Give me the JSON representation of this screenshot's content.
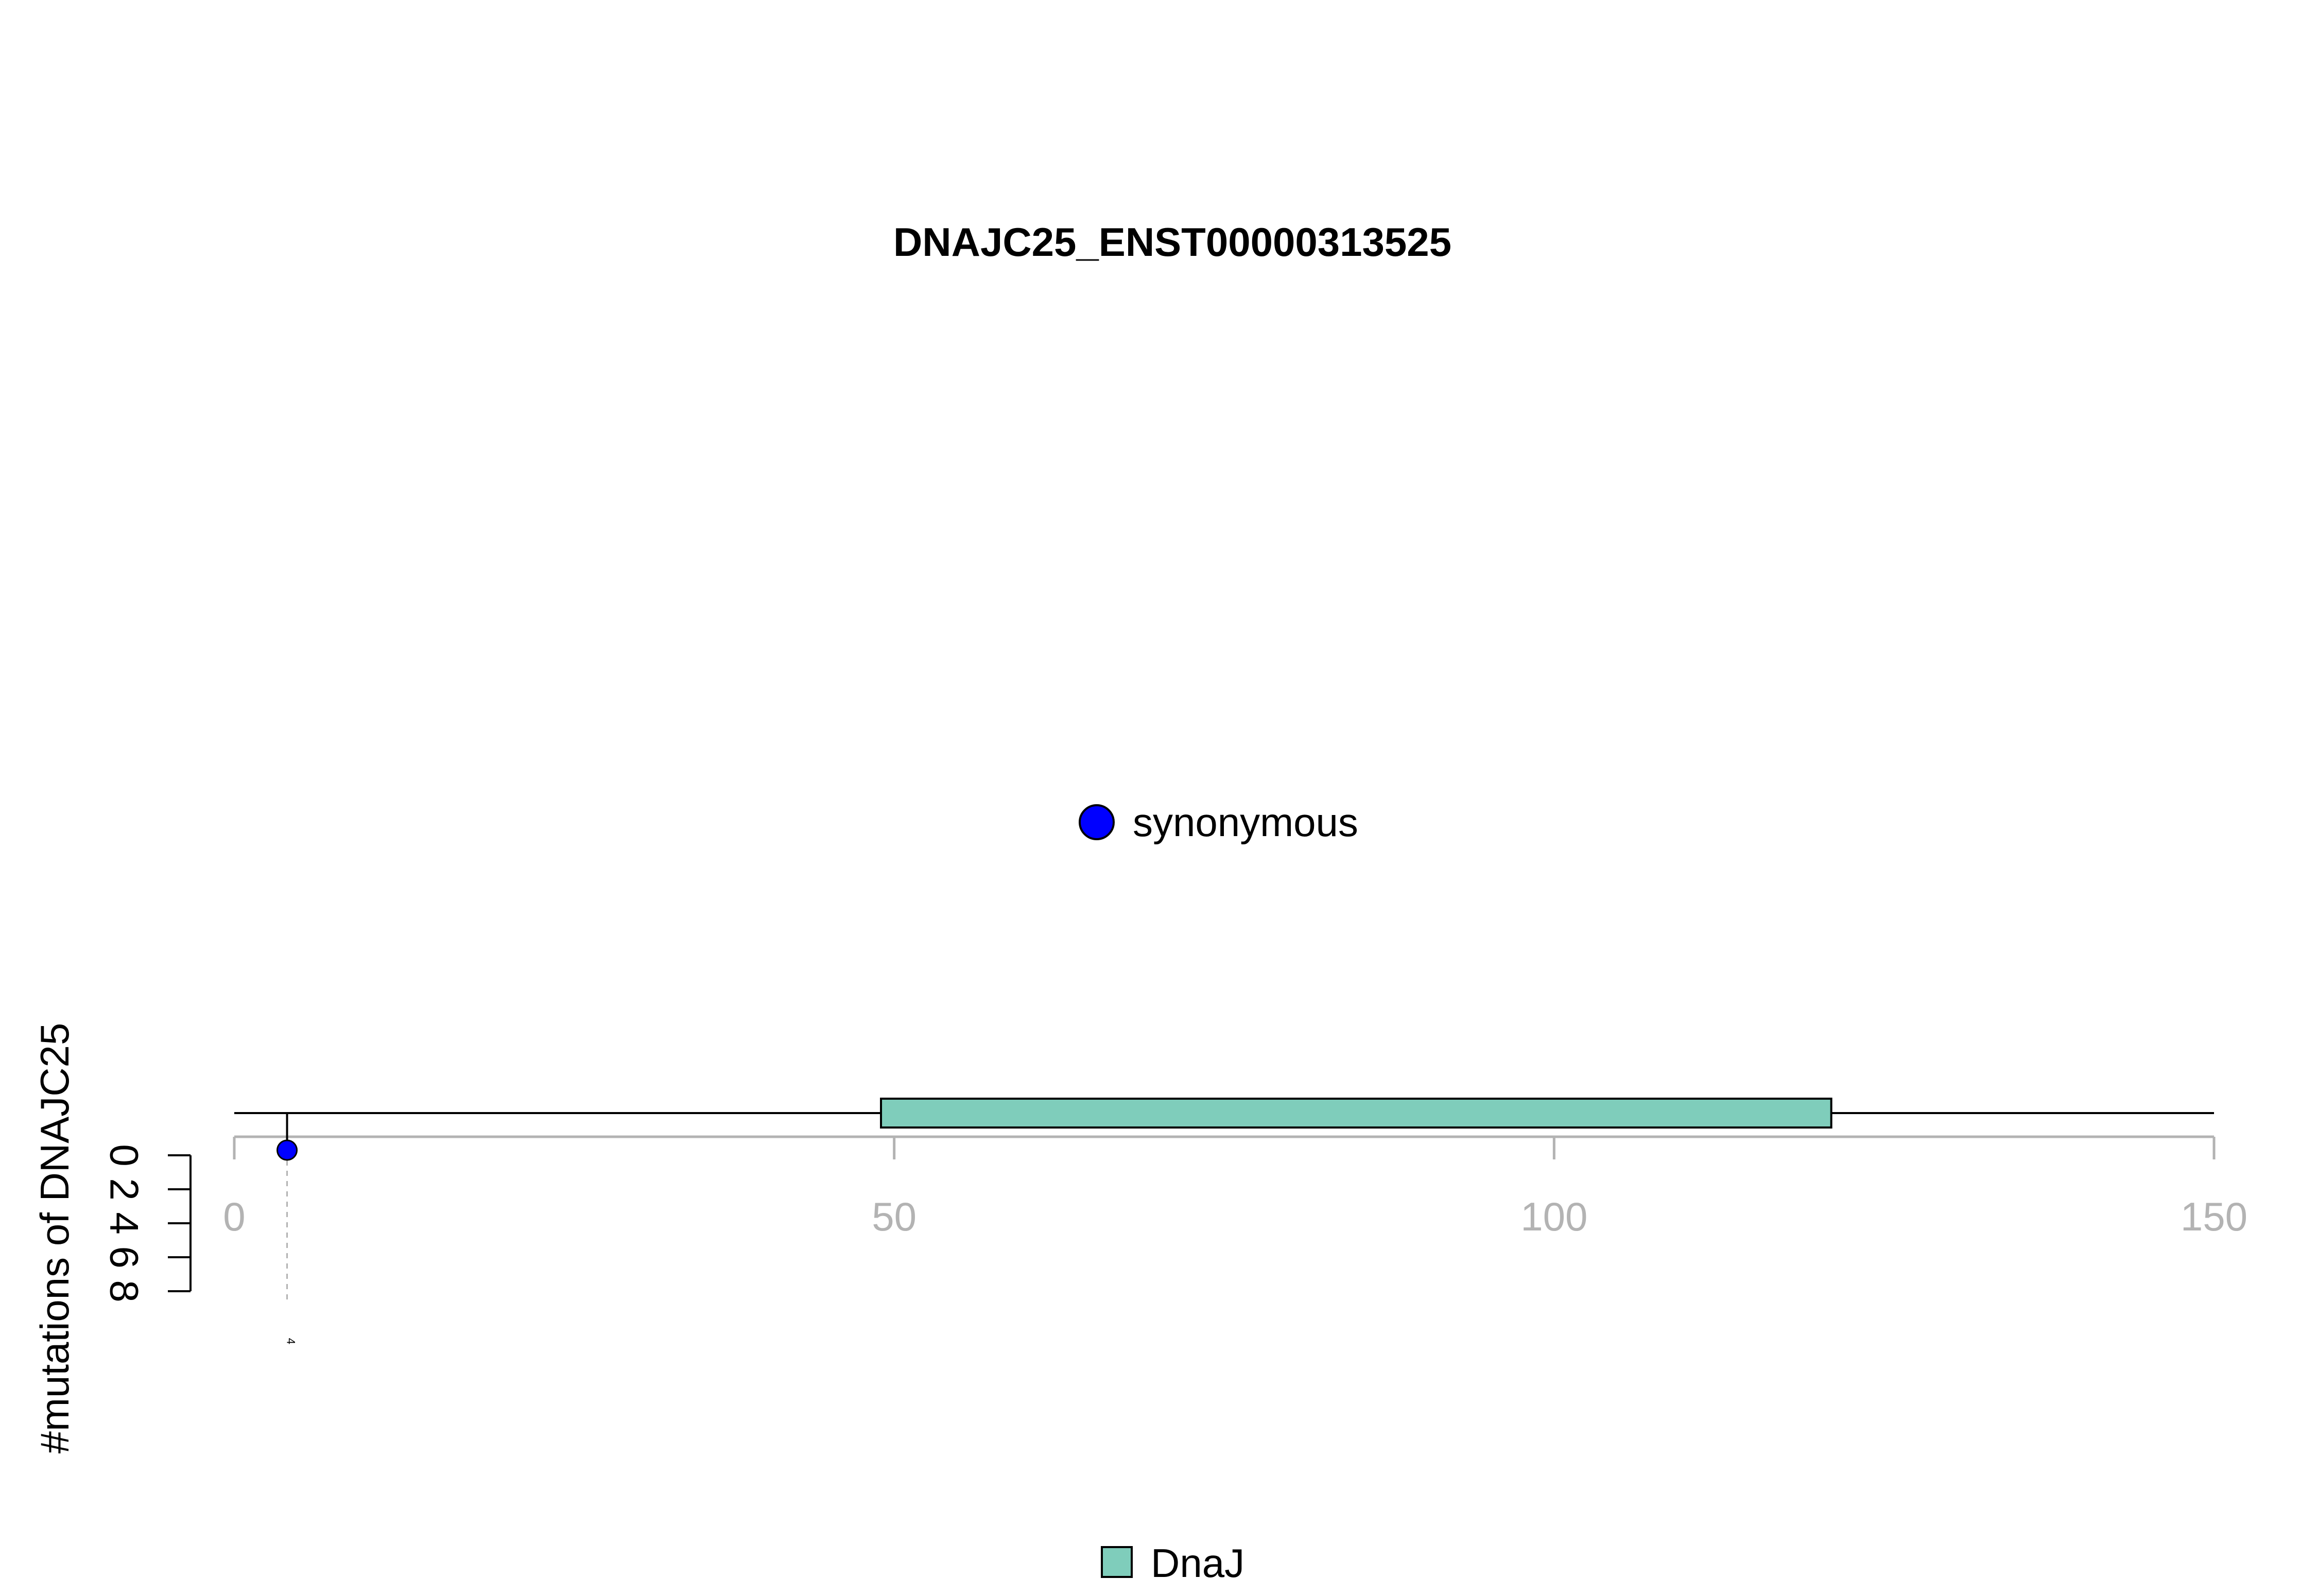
{
  "chart_data": {
    "type": "lollipop",
    "title": "DNAJC25_ENST00000313525",
    "ylabel": "#mutations of DNAJC25",
    "xlim": [
      0,
      150
    ],
    "x_ticks": [
      "0",
      "50",
      "100",
      "150"
    ],
    "ylim": [
      0,
      8
    ],
    "y_ticks": [
      "0",
      "2",
      "4",
      "6",
      "8"
    ],
    "domains": [
      {
        "name": "DnaJ",
        "start": 49,
        "end": 121,
        "color": "#7fcdbb"
      }
    ],
    "mutations": [
      {
        "position": 4,
        "label": "4",
        "count": 1,
        "type": "synonymous",
        "color": "#0000ff"
      }
    ],
    "legend": {
      "mutation_types": [
        {
          "label": "synonymous",
          "color": "#0000ff"
        }
      ],
      "domains": [
        {
          "label": "DnaJ",
          "color": "#7fcdbb"
        }
      ]
    }
  }
}
